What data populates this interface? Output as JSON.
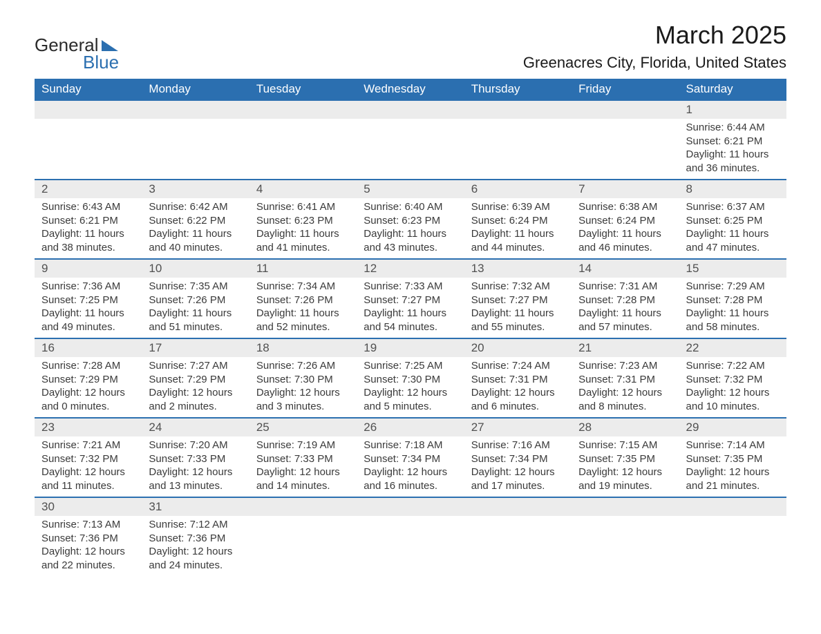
{
  "brand": {
    "word1": "General",
    "word2": "Blue",
    "accent_color": "#2b6fb0"
  },
  "title": {
    "month_year": "March 2025",
    "location": "Greenacres City, Florida, United States"
  },
  "calendar": {
    "day_headers": [
      "Sunday",
      "Monday",
      "Tuesday",
      "Wednesday",
      "Thursday",
      "Friday",
      "Saturday"
    ],
    "header_bg": "#2b6fb0",
    "header_fg": "#ffffff",
    "daynum_bg": "#ececec",
    "row_border": "#2b6fb0",
    "weeks": [
      [
        {
          "day": "",
          "sunrise": "",
          "sunset": "",
          "daylight": ""
        },
        {
          "day": "",
          "sunrise": "",
          "sunset": "",
          "daylight": ""
        },
        {
          "day": "",
          "sunrise": "",
          "sunset": "",
          "daylight": ""
        },
        {
          "day": "",
          "sunrise": "",
          "sunset": "",
          "daylight": ""
        },
        {
          "day": "",
          "sunrise": "",
          "sunset": "",
          "daylight": ""
        },
        {
          "day": "",
          "sunrise": "",
          "sunset": "",
          "daylight": ""
        },
        {
          "day": "1",
          "sunrise": "Sunrise: 6:44 AM",
          "sunset": "Sunset: 6:21 PM",
          "daylight": "Daylight: 11 hours and 36 minutes."
        }
      ],
      [
        {
          "day": "2",
          "sunrise": "Sunrise: 6:43 AM",
          "sunset": "Sunset: 6:21 PM",
          "daylight": "Daylight: 11 hours and 38 minutes."
        },
        {
          "day": "3",
          "sunrise": "Sunrise: 6:42 AM",
          "sunset": "Sunset: 6:22 PM",
          "daylight": "Daylight: 11 hours and 40 minutes."
        },
        {
          "day": "4",
          "sunrise": "Sunrise: 6:41 AM",
          "sunset": "Sunset: 6:23 PM",
          "daylight": "Daylight: 11 hours and 41 minutes."
        },
        {
          "day": "5",
          "sunrise": "Sunrise: 6:40 AM",
          "sunset": "Sunset: 6:23 PM",
          "daylight": "Daylight: 11 hours and 43 minutes."
        },
        {
          "day": "6",
          "sunrise": "Sunrise: 6:39 AM",
          "sunset": "Sunset: 6:24 PM",
          "daylight": "Daylight: 11 hours and 44 minutes."
        },
        {
          "day": "7",
          "sunrise": "Sunrise: 6:38 AM",
          "sunset": "Sunset: 6:24 PM",
          "daylight": "Daylight: 11 hours and 46 minutes."
        },
        {
          "day": "8",
          "sunrise": "Sunrise: 6:37 AM",
          "sunset": "Sunset: 6:25 PM",
          "daylight": "Daylight: 11 hours and 47 minutes."
        }
      ],
      [
        {
          "day": "9",
          "sunrise": "Sunrise: 7:36 AM",
          "sunset": "Sunset: 7:25 PM",
          "daylight": "Daylight: 11 hours and 49 minutes."
        },
        {
          "day": "10",
          "sunrise": "Sunrise: 7:35 AM",
          "sunset": "Sunset: 7:26 PM",
          "daylight": "Daylight: 11 hours and 51 minutes."
        },
        {
          "day": "11",
          "sunrise": "Sunrise: 7:34 AM",
          "sunset": "Sunset: 7:26 PM",
          "daylight": "Daylight: 11 hours and 52 minutes."
        },
        {
          "day": "12",
          "sunrise": "Sunrise: 7:33 AM",
          "sunset": "Sunset: 7:27 PM",
          "daylight": "Daylight: 11 hours and 54 minutes."
        },
        {
          "day": "13",
          "sunrise": "Sunrise: 7:32 AM",
          "sunset": "Sunset: 7:27 PM",
          "daylight": "Daylight: 11 hours and 55 minutes."
        },
        {
          "day": "14",
          "sunrise": "Sunrise: 7:31 AM",
          "sunset": "Sunset: 7:28 PM",
          "daylight": "Daylight: 11 hours and 57 minutes."
        },
        {
          "day": "15",
          "sunrise": "Sunrise: 7:29 AM",
          "sunset": "Sunset: 7:28 PM",
          "daylight": "Daylight: 11 hours and 58 minutes."
        }
      ],
      [
        {
          "day": "16",
          "sunrise": "Sunrise: 7:28 AM",
          "sunset": "Sunset: 7:29 PM",
          "daylight": "Daylight: 12 hours and 0 minutes."
        },
        {
          "day": "17",
          "sunrise": "Sunrise: 7:27 AM",
          "sunset": "Sunset: 7:29 PM",
          "daylight": "Daylight: 12 hours and 2 minutes."
        },
        {
          "day": "18",
          "sunrise": "Sunrise: 7:26 AM",
          "sunset": "Sunset: 7:30 PM",
          "daylight": "Daylight: 12 hours and 3 minutes."
        },
        {
          "day": "19",
          "sunrise": "Sunrise: 7:25 AM",
          "sunset": "Sunset: 7:30 PM",
          "daylight": "Daylight: 12 hours and 5 minutes."
        },
        {
          "day": "20",
          "sunrise": "Sunrise: 7:24 AM",
          "sunset": "Sunset: 7:31 PM",
          "daylight": "Daylight: 12 hours and 6 minutes."
        },
        {
          "day": "21",
          "sunrise": "Sunrise: 7:23 AM",
          "sunset": "Sunset: 7:31 PM",
          "daylight": "Daylight: 12 hours and 8 minutes."
        },
        {
          "day": "22",
          "sunrise": "Sunrise: 7:22 AM",
          "sunset": "Sunset: 7:32 PM",
          "daylight": "Daylight: 12 hours and 10 minutes."
        }
      ],
      [
        {
          "day": "23",
          "sunrise": "Sunrise: 7:21 AM",
          "sunset": "Sunset: 7:32 PM",
          "daylight": "Daylight: 12 hours and 11 minutes."
        },
        {
          "day": "24",
          "sunrise": "Sunrise: 7:20 AM",
          "sunset": "Sunset: 7:33 PM",
          "daylight": "Daylight: 12 hours and 13 minutes."
        },
        {
          "day": "25",
          "sunrise": "Sunrise: 7:19 AM",
          "sunset": "Sunset: 7:33 PM",
          "daylight": "Daylight: 12 hours and 14 minutes."
        },
        {
          "day": "26",
          "sunrise": "Sunrise: 7:18 AM",
          "sunset": "Sunset: 7:34 PM",
          "daylight": "Daylight: 12 hours and 16 minutes."
        },
        {
          "day": "27",
          "sunrise": "Sunrise: 7:16 AM",
          "sunset": "Sunset: 7:34 PM",
          "daylight": "Daylight: 12 hours and 17 minutes."
        },
        {
          "day": "28",
          "sunrise": "Sunrise: 7:15 AM",
          "sunset": "Sunset: 7:35 PM",
          "daylight": "Daylight: 12 hours and 19 minutes."
        },
        {
          "day": "29",
          "sunrise": "Sunrise: 7:14 AM",
          "sunset": "Sunset: 7:35 PM",
          "daylight": "Daylight: 12 hours and 21 minutes."
        }
      ],
      [
        {
          "day": "30",
          "sunrise": "Sunrise: 7:13 AM",
          "sunset": "Sunset: 7:36 PM",
          "daylight": "Daylight: 12 hours and 22 minutes."
        },
        {
          "day": "31",
          "sunrise": "Sunrise: 7:12 AM",
          "sunset": "Sunset: 7:36 PM",
          "daylight": "Daylight: 12 hours and 24 minutes."
        },
        {
          "day": "",
          "sunrise": "",
          "sunset": "",
          "daylight": ""
        },
        {
          "day": "",
          "sunrise": "",
          "sunset": "",
          "daylight": ""
        },
        {
          "day": "",
          "sunrise": "",
          "sunset": "",
          "daylight": ""
        },
        {
          "day": "",
          "sunrise": "",
          "sunset": "",
          "daylight": ""
        },
        {
          "day": "",
          "sunrise": "",
          "sunset": "",
          "daylight": ""
        }
      ]
    ]
  }
}
